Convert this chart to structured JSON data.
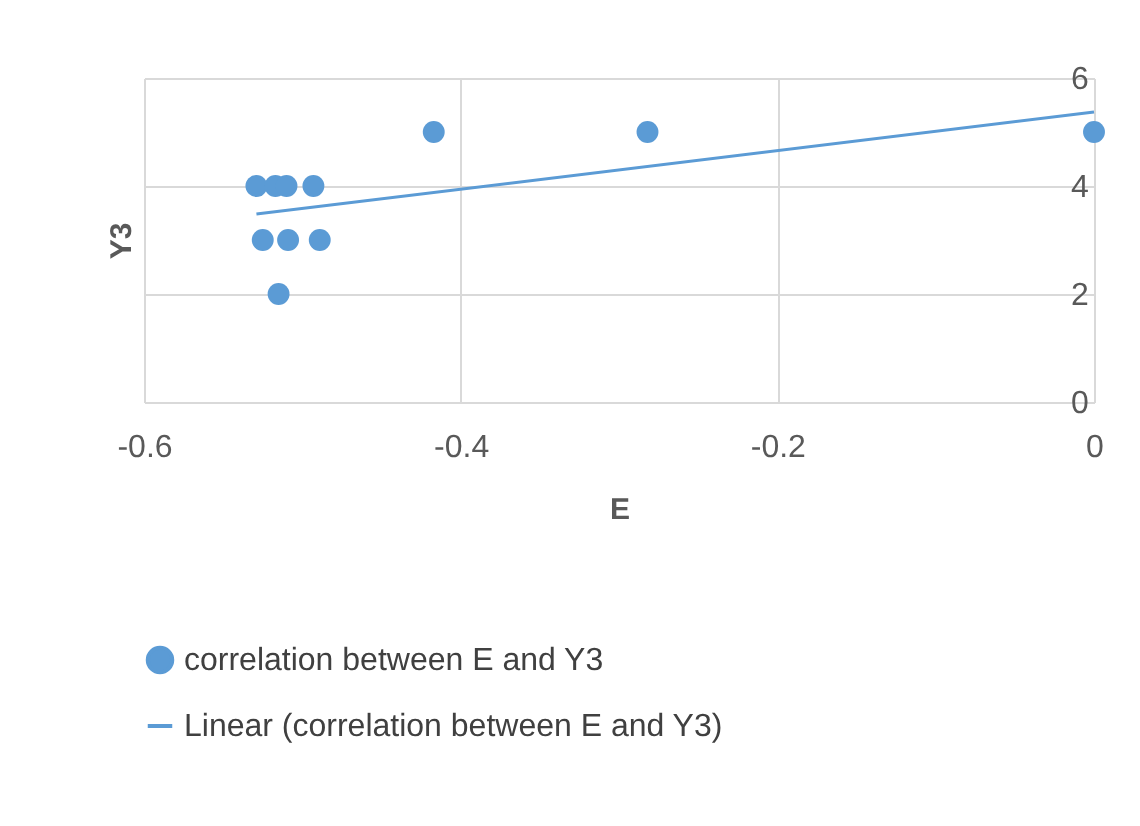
{
  "chart_data": {
    "type": "scatter",
    "xlabel": "E",
    "ylabel": "Y3",
    "xlim": [
      -0.6,
      0
    ],
    "ylim": [
      0,
      6
    ],
    "xticks": [
      -0.6,
      -0.4,
      -0.2,
      0
    ],
    "yticks": [
      0,
      2,
      4,
      6
    ],
    "grid": true,
    "legend": "bottom",
    "series": [
      {
        "name": "correlation between E and Y3",
        "color": "#5b9bd5",
        "marker": "circle",
        "x": [
          -0.529,
          -0.517,
          -0.51,
          -0.493,
          -0.525,
          -0.509,
          -0.489,
          -0.515,
          -0.417,
          -0.282,
          0
        ],
        "values": [
          4,
          4,
          4,
          4,
          3,
          3,
          3,
          2,
          5,
          5,
          5
        ]
      },
      {
        "name": "Linear (correlation between E and Y3)",
        "type": "line",
        "color": "#5b9bd5",
        "line_style": "solid",
        "marker": "none",
        "x": [
          -0.529,
          0
        ],
        "values": [
          3.48,
          5.37
        ]
      }
    ]
  }
}
